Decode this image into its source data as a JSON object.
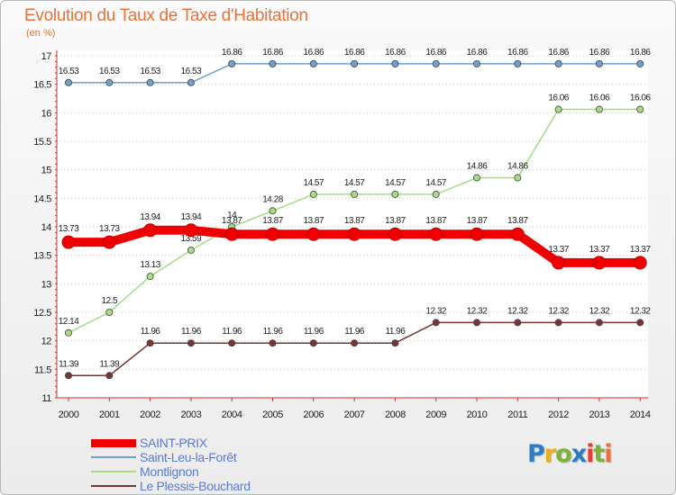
{
  "title": "Evolution du Taux de Taxe d'Habitation",
  "subtitle": "(en %)",
  "logo": {
    "text": "Proxiti",
    "colors": [
      "#2e7cc4",
      "#e8b11c",
      "#7ab434",
      "#2e7cc4",
      "#e53d2f",
      "#7ab434",
      "#e8733a"
    ]
  },
  "chart_data": {
    "type": "line",
    "title": "Evolution du Taux de Taxe d'Habitation",
    "subtitle": "(en %)",
    "xlabel": "",
    "ylabel": "",
    "x": [
      "2000",
      "2001",
      "2002",
      "2003",
      "2004",
      "2005",
      "2006",
      "2007",
      "2008",
      "2009",
      "2010",
      "2011",
      "2012",
      "2013",
      "2014"
    ],
    "ylim": [
      11,
      17
    ],
    "yticks": [
      "11",
      "11.5",
      "12",
      "12.5",
      "13",
      "13.5",
      "14",
      "14.5",
      "15",
      "15.5",
      "16",
      "16.5",
      "17"
    ],
    "grid": "horizontal dotted",
    "legend_position": "bottom-left",
    "series": [
      {
        "name": "SAINT-PRIX",
        "color": "#f00000",
        "width": 10,
        "values": [
          13.73,
          13.73,
          13.94,
          13.94,
          13.87,
          13.87,
          13.87,
          13.87,
          13.87,
          13.87,
          13.87,
          13.87,
          13.37,
          13.37,
          13.37
        ],
        "labels": [
          "13.73",
          "13.73",
          "13.94",
          "13.94",
          "13.87",
          "13.87",
          "13.87",
          "13.87",
          "13.87",
          "13.87",
          "13.87",
          "13.87",
          "13.37",
          "13.37",
          "13.37"
        ]
      },
      {
        "name": "Saint-Leu-la-Forêt",
        "color": "#6ea0d4",
        "width": 1.5,
        "values": [
          16.53,
          16.53,
          16.53,
          16.53,
          16.86,
          16.86,
          16.86,
          16.86,
          16.86,
          16.86,
          16.86,
          16.86,
          16.86,
          16.86,
          16.86
        ],
        "labels": [
          "16.53",
          "16.53",
          "16.53",
          "16.53",
          "16.86",
          "16.86",
          "16.86",
          "16.86",
          "16.86",
          "16.86",
          "16.86",
          "16.86",
          "16.86",
          "16.86",
          "16.86"
        ]
      },
      {
        "name": "Montlignon",
        "color": "#a6dc82",
        "width": 1.5,
        "values": [
          12.14,
          12.5,
          13.13,
          13.59,
          14.0,
          14.28,
          14.57,
          14.57,
          14.57,
          14.57,
          14.86,
          14.86,
          16.06,
          16.06,
          16.06
        ],
        "labels": [
          "12.14",
          "12.5",
          "13.13",
          "13.59",
          "14",
          "14.28",
          "14.57",
          "14.57",
          "14.57",
          "14.57",
          "14.86",
          "14.86",
          "16.06",
          "16.06",
          "16.06"
        ]
      },
      {
        "name": "Le Plessis-Bouchard",
        "color": "#7b3434",
        "width": 1.5,
        "values": [
          11.39,
          11.39,
          11.96,
          11.96,
          11.96,
          11.96,
          11.96,
          11.96,
          11.96,
          12.32,
          12.32,
          12.32,
          12.32,
          12.32,
          12.32
        ],
        "labels": [
          "11.39",
          "11.39",
          "11.96",
          "11.96",
          "11.96",
          "11.96",
          "11.96",
          "11.96",
          "11.96",
          "12.32",
          "12.32",
          "12.32",
          "12.32",
          "12.32",
          "12.32"
        ]
      }
    ]
  }
}
